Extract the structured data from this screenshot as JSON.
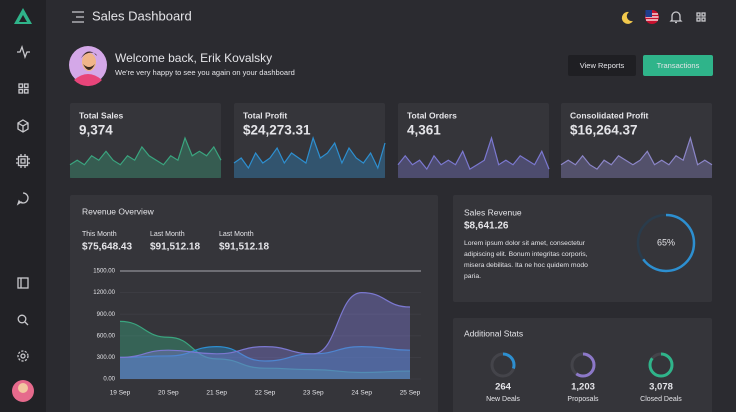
{
  "header": {
    "title": "Sales Dashboard"
  },
  "welcome": {
    "title": "Welcome back, Erik Kovalsky",
    "subtitle": "We're very happy to see you again on your dashboard"
  },
  "buttons": [
    "View Reports",
    "Transactions"
  ],
  "stats": [
    {
      "label": "Total Sales",
      "value": "9,374",
      "color": "#3aa57f",
      "trend": [
        3,
        4,
        3,
        5,
        4,
        6,
        4,
        3,
        5,
        4,
        7,
        5,
        4,
        3,
        5,
        4,
        9,
        5,
        6,
        5,
        7,
        4
      ]
    },
    {
      "label": "Total Profit",
      "value": "$24,273.31",
      "color": "#2d8fd0",
      "trend": [
        3,
        4,
        2,
        5,
        3,
        4,
        6,
        3,
        5,
        4,
        3,
        8,
        4,
        5,
        7,
        3,
        6,
        4,
        3,
        5,
        2,
        7
      ]
    },
    {
      "label": "Total Orders",
      "value": "4,361",
      "color": "#7b78d0",
      "trend": [
        3,
        5,
        3,
        4,
        2,
        5,
        3,
        4,
        3,
        6,
        2,
        3,
        4,
        9,
        3,
        4,
        3,
        5,
        4,
        3,
        6,
        2
      ]
    },
    {
      "label": "Consolidated Profit",
      "value": "$16,264.37",
      "color": "#8c86c9",
      "trend": [
        3,
        4,
        3,
        5,
        3,
        2,
        4,
        3,
        5,
        4,
        3,
        4,
        6,
        3,
        4,
        3,
        5,
        4,
        9,
        3,
        4,
        3
      ]
    }
  ],
  "revenue_overview": {
    "title": "Revenue Overview",
    "summary": [
      {
        "label": "This Month",
        "value": "$75,648.43"
      },
      {
        "label": "Last Month",
        "value": "$91,512.18"
      },
      {
        "label": "Last Month",
        "value": "$91,512.18"
      }
    ],
    "chart_data": {
      "type": "area",
      "categories": [
        "19 Sep",
        "20 Sep",
        "21 Sep",
        "22 Sep",
        "23 Sep",
        "24 Sep",
        "25 Sep"
      ],
      "series": [
        {
          "color": "#3aa57f",
          "values": [
            800,
            580,
            280,
            150,
            130,
            90,
            110
          ]
        },
        {
          "color": "#2d8fd0",
          "values": [
            300,
            320,
            450,
            250,
            350,
            450,
            400
          ]
        },
        {
          "color": "#7b78d0",
          "values": [
            300,
            400,
            350,
            450,
            350,
            1200,
            1000
          ]
        }
      ],
      "ylim": [
        0,
        1500
      ],
      "yticks": [
        {
          "value": 0,
          "label": "0.00"
        },
        {
          "value": 300,
          "label": "300.00"
        },
        {
          "value": 600,
          "label": "600.00"
        },
        {
          "value": 900,
          "label": "900.00"
        },
        {
          "value": 1200,
          "label": "1200.00"
        },
        {
          "value": 1500,
          "label": "1500.00"
        }
      ],
      "grid": true
    }
  },
  "sales_revenue": {
    "title": "Sales Revenue",
    "value": "$8,641.26",
    "text": [
      "Lorem ipsum dolor sit amet, consectetur",
      "adipiscing elit. Bonum integritas corporis,",
      "misera debilitas. Ita ne hoc quidem modo",
      "paria."
    ],
    "progress": {
      "value": 65,
      "label": "65%"
    }
  },
  "additional_stats": {
    "title": "Additional Stats",
    "items": [
      {
        "value": "264",
        "label": "New Deals",
        "progress": 30,
        "color": "#2d8fd0"
      },
      {
        "value": "1,203",
        "label": "Proposals",
        "progress": 60,
        "color": "#8c78c8"
      },
      {
        "value": "3,078",
        "label": "Closed Deals",
        "progress": 85,
        "color": "#2fb48a"
      }
    ]
  }
}
